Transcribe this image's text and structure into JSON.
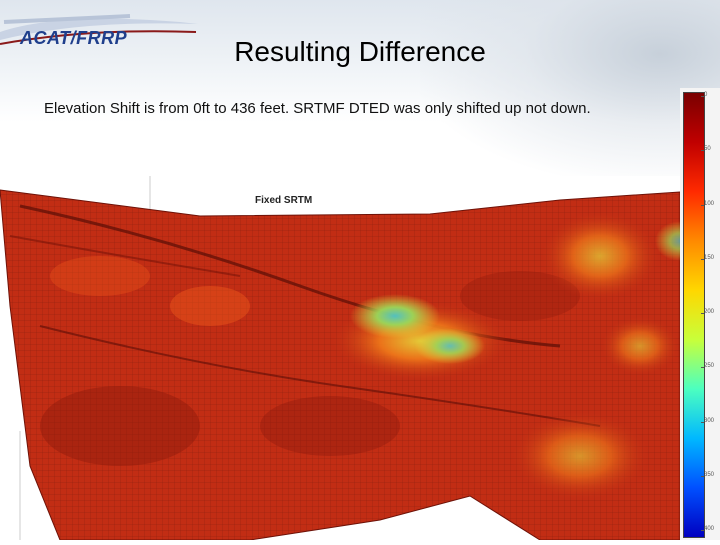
{
  "logo": {
    "text": "ACAT/FRRP"
  },
  "slide": {
    "title": "Resulting Difference",
    "subtitle": "Elevation Shift is from 0ft to 436 feet.  SRTMF DTED was only shifted up not down."
  },
  "plot": {
    "title": "Fixed SRTM",
    "colors": {
      "surface_base": "#c22d14",
      "surface_dark": "#8e1a0c",
      "hot": "#f05a1a",
      "yellow": "#e8d83a",
      "cyan": "#4fc7c8",
      "blue": "#1a44d6",
      "grid": "#5a1208"
    }
  },
  "colorbar": {
    "ticks": [
      "0",
      "50",
      "100",
      "150",
      "200",
      "250",
      "300",
      "350",
      "400"
    ],
    "colors": [
      "#7a0000",
      "#c00000",
      "#ff2a00",
      "#ff8a00",
      "#ffd700",
      "#c8ff3a",
      "#4cffc0",
      "#00b8ff",
      "#0050ff",
      "#0000c0"
    ]
  }
}
